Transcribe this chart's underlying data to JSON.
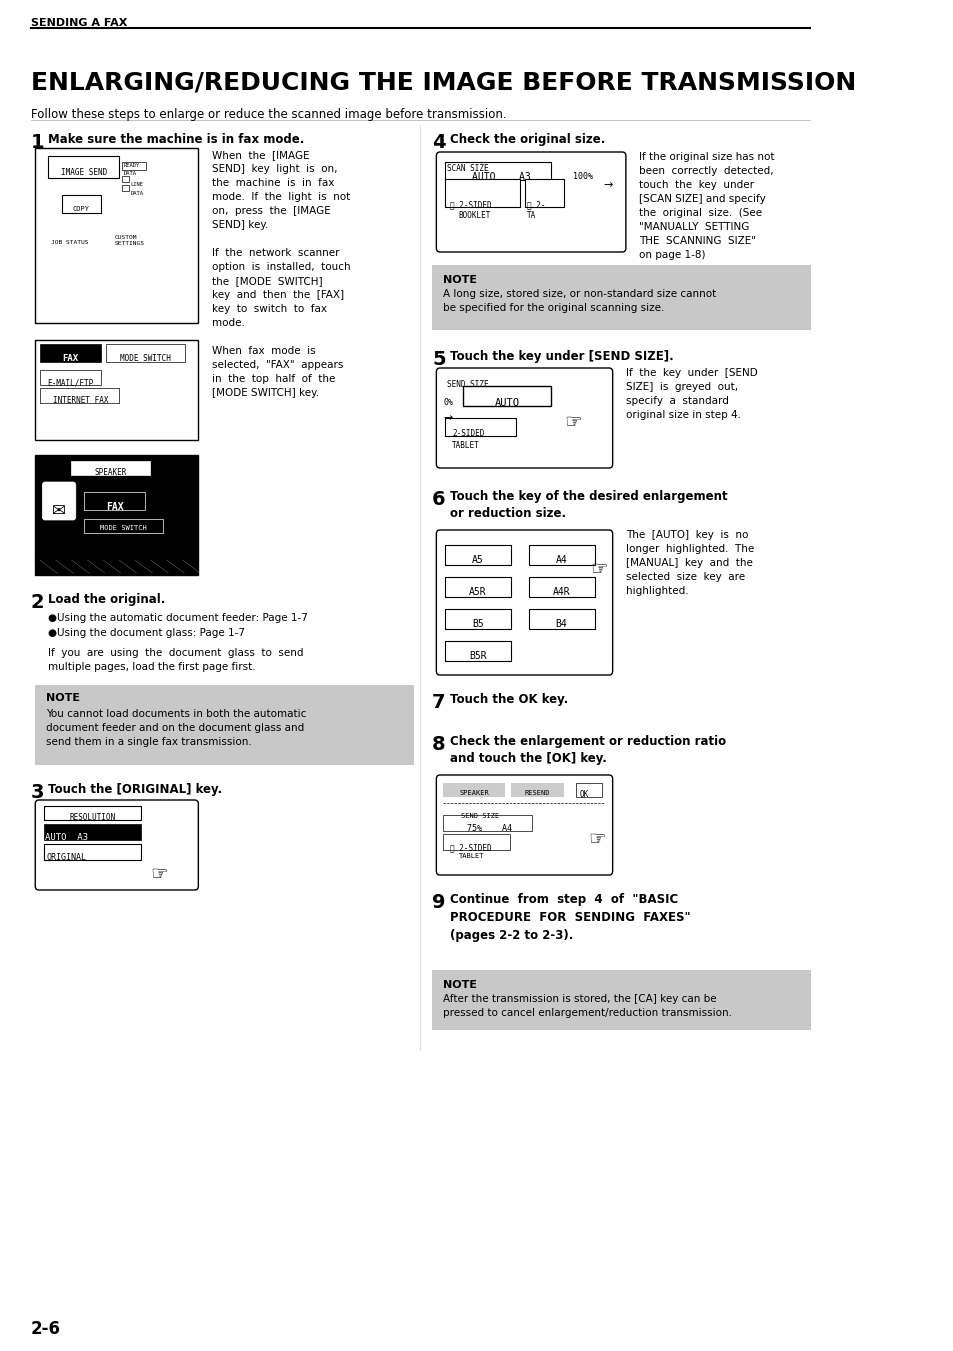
{
  "page_bg": "#ffffff",
  "header_text": "SENDING A FAX",
  "title": "ENLARGING/REDUCING THE IMAGE BEFORE TRANSMISSION",
  "subtitle": "Follow these steps to enlarge or reduce the scanned image before transmission.",
  "footer_text": "2-6",
  "steps": [
    {
      "num": "1",
      "heading": "Make sure the machine is in fax mode.",
      "body": "When  the  [IMAGE\nSEND]  key  light  is  on,\nthe  machine  is  in  fax\nmode.  If  the  light  is  not\non,  press  the  [IMAGE\nSEND] key.\n\nIf  the  network  scanner\noption  is  installed,  touch\nthe  [MODE  SWITCH]\nkey  and  then  the  [FAX]\nkey  to  switch  to  fax\nmode.\n\nWhen  fax  mode  is\nselected,  \"FAX\"  appears\nin  the  top  half  of  the\n[MODE SWITCH] key.",
      "col": 0
    },
    {
      "num": "2",
      "heading": "Load the original.",
      "body": "●Using the automatic document feeder: Page 1-7\n●Using the document glass: Page 1-7\n\nIf  you  are  using  the  document  glass  to  send\nmultiple pages, load the first page first.",
      "col": 0
    },
    {
      "num": "3",
      "heading": "Touch the [ORIGINAL] key.",
      "body": "",
      "col": 0
    },
    {
      "num": "4",
      "heading": "Check the original size.",
      "body": "If the original size has not\nbeen  correctly  detected,\ntouch  the  key  under\n[SCAN SIZE] and specify\nthe  original  size.  (See\n\"MANUALLY  SETTING\nTHE  SCANNING  SIZE\"\non page 1-8)",
      "col": 1
    },
    {
      "num": "5",
      "heading": "Touch the key under [SEND SIZE].",
      "body": "If  the  key  under  [SEND\nSIZE]  is  greyed  out,\nspecify  a  standard\noriginal size in step 4.",
      "col": 1
    },
    {
      "num": "6",
      "heading": "Touch the key of the desired enlargement\nor reduction size.",
      "body": "The  [AUTO]  key  is  no\nlonger  highlighted.  The\n[MANUAL]  key  and  the\nselected  size  key  are\nhighlighted.",
      "col": 1
    },
    {
      "num": "7",
      "heading": "Touch the OK key.",
      "body": "",
      "col": 1
    },
    {
      "num": "8",
      "heading": "Check the enlargement or reduction ratio\nand touch the [OK] key.",
      "body": "",
      "col": 1
    },
    {
      "num": "9",
      "heading": "Continue  from  step  4  of  \"BASIC\nPROCEDURE  FOR  SENDING  FAXES\"\n(pages 2-2 to 2-3).",
      "body": "",
      "col": 1
    }
  ],
  "note1_title": "NOTE",
  "note1_body": "You cannot load documents in both the automatic\ndocument feeder and on the document glass and\nsend them in a single fax transmission.",
  "note2_title": "NOTE",
  "note2_body": "A long size, stored size, or non-standard size cannot\nbe specified for the original scanning size.",
  "note3_title": "NOTE",
  "note3_body": "After the transmission is stored, the [CA] key can be\npressed to cancel enlargement/reduction transmission.",
  "note_bg": "#c8c8c8",
  "box_border": "#000000"
}
